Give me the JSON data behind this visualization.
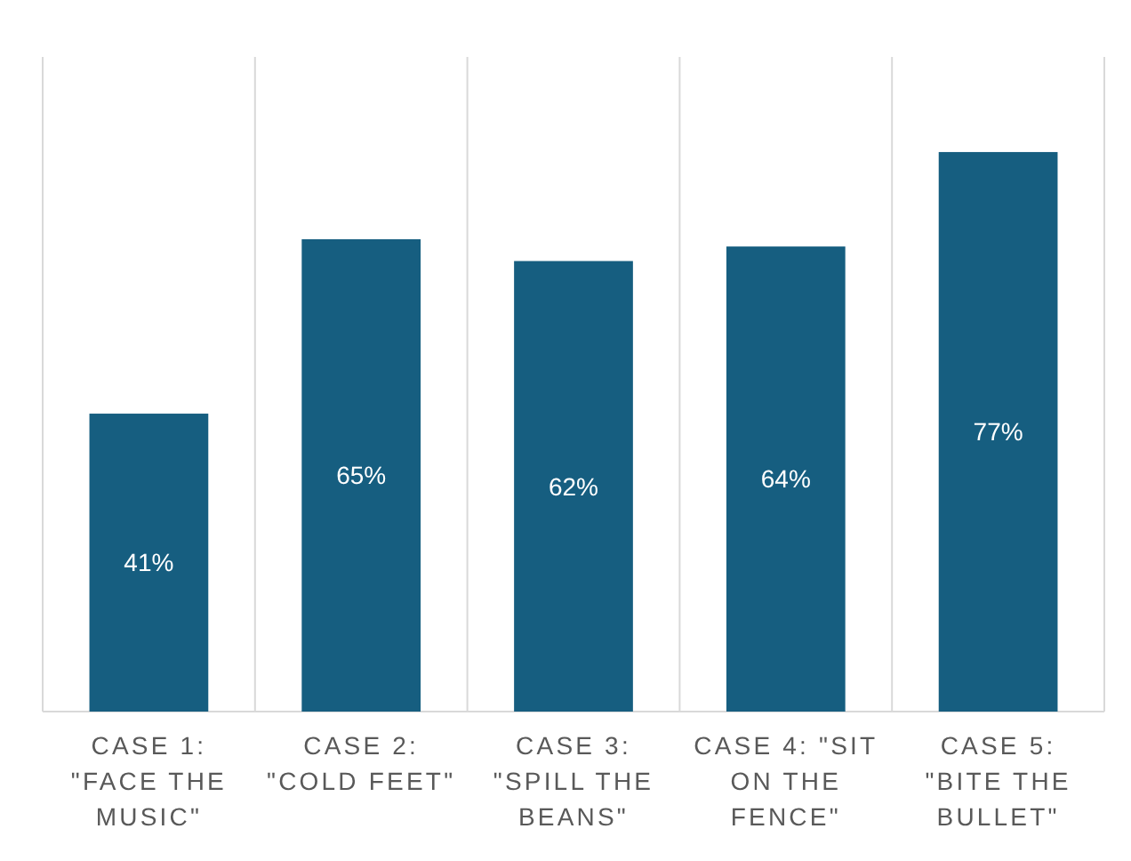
{
  "chart_data": {
    "type": "bar",
    "categories": [
      "CASE 1: \"FACE THE MUSIC\"",
      "CASE 2: \"COLD FEET\"",
      "CASE 3: \"SPILL THE BEANS\"",
      "CASE 4: \"SIT ON THE FENCE\"",
      "CASE 5: \"BITE THE BULLET\""
    ],
    "values": [
      41,
      65,
      62,
      64,
      77
    ],
    "color": "#165e80",
    "value_labels": [
      "41%",
      "65%",
      "62%",
      "64%",
      "77%"
    ],
    "grid": "x"
  }
}
